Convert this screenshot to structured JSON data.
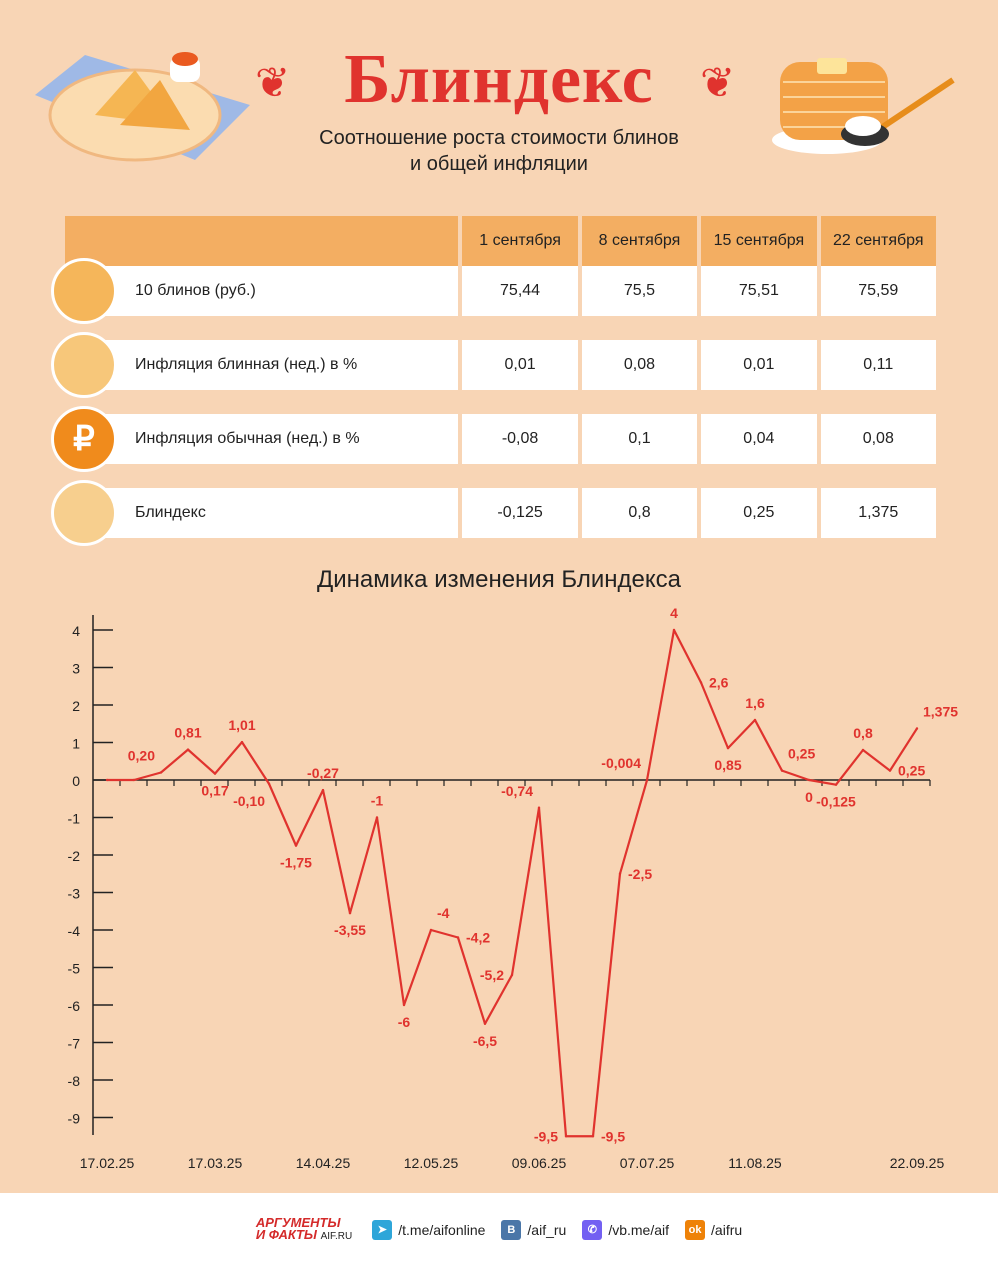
{
  "header": {
    "title": "Блиндекс",
    "subtitle_line1": "Соотношение роста стоимости блинов",
    "subtitle_line2": "и общей инфляции"
  },
  "table": {
    "columns": [
      "1 сентября",
      "8 сентября",
      "15 сентября",
      "22 сентября"
    ],
    "rows": [
      {
        "label": "10 блинов (руб.)",
        "icon": "pancake-stack-icon",
        "values": [
          "75,44",
          "75,5",
          "75,51",
          "75,59"
        ]
      },
      {
        "label": "Инфляция блинная (нед.) в %",
        "icon": "pancake-icon",
        "values": [
          "0,01",
          "0,08",
          "0,01",
          "0,11"
        ]
      },
      {
        "label": "Инфляция обычная (нед.) в %",
        "icon": "ruble-coin-icon",
        "values": [
          "-0,08",
          "0,1",
          "0,04",
          "0,08"
        ]
      },
      {
        "label": "Блиндекс",
        "icon": "pancake-growth-icon",
        "values": [
          "-0,125",
          "0,8",
          "0,25",
          "1,375"
        ]
      }
    ]
  },
  "chart_data": {
    "type": "line",
    "title": "Динамика изменения Блиндекса",
    "color": "#e0332e",
    "ylim": [
      -9.5,
      4.2
    ],
    "yticks": [
      "4",
      "3",
      "2",
      "1",
      "0",
      "-1",
      "-2",
      "-3",
      "-4",
      "-5",
      "-6",
      "-7",
      "-8",
      "-9"
    ],
    "ytick_values": [
      4,
      3,
      2,
      1,
      0,
      -1,
      -2,
      -3,
      -4,
      -5,
      -6,
      -7,
      -8,
      -9
    ],
    "xlabels": [
      {
        "i": 0,
        "text": "17.02.25"
      },
      {
        "i": 4,
        "text": "17.03.25"
      },
      {
        "i": 8,
        "text": "14.04.25"
      },
      {
        "i": 12,
        "text": "12.05.25"
      },
      {
        "i": 16,
        "text": "09.06.25"
      },
      {
        "i": 20,
        "text": "07.07.25"
      },
      {
        "i": 24,
        "text": "11.08.25"
      },
      {
        "i": 30,
        "text": "22.09.25"
      }
    ],
    "values": [
      0,
      0,
      0.2,
      0.81,
      0.17,
      1.01,
      -0.1,
      -1.75,
      -0.27,
      -3.55,
      -1,
      -6,
      -4,
      -4.2,
      -6.5,
      -5.2,
      -0.74,
      -9.5,
      -9.5,
      -2.5,
      -0.004,
      4,
      2.6,
      0.85,
      1.6,
      0.25,
      0,
      -0.125,
      0.8,
      0.25,
      1.375
    ],
    "labels": [
      "",
      "",
      "0,20",
      "0,81",
      "0,17",
      "1,01",
      "-0,10",
      "-1,75",
      "-0,27",
      "-3,55",
      "-1",
      "-6",
      "-4",
      "-4,2",
      "-6,5",
      "-5,2",
      "-0,74",
      "-9,5",
      "-9,5",
      "-2,5",
      "-0,004",
      "4",
      "2,6",
      "0,85",
      "1,6",
      "0,25",
      "0",
      "-0,125",
      "0,8",
      "0,25",
      "1,375"
    ],
    "label_pos": [
      "",
      "",
      "above-left",
      "above",
      "below",
      "above",
      "below-left",
      "below",
      "above",
      "below",
      "above",
      "below",
      "above-right",
      "right",
      "below",
      "left",
      "above-left",
      "left",
      "right",
      "right",
      "above-left",
      "above",
      "right",
      "below",
      "above",
      "above-right",
      "below",
      "below",
      "above",
      "right",
      "above-right"
    ]
  },
  "footer": {
    "brand_line1": "АРГУМЕНТЫ",
    "brand_line2": "И ФАКТЫ",
    "brand_site": "AIF.RU",
    "links": [
      {
        "icon": "telegram-icon",
        "text": "/t.me/aifonline",
        "color": "#2ea6d9"
      },
      {
        "icon": "vk-icon",
        "text": "/aif_ru",
        "color": "#4a76a8"
      },
      {
        "icon": "viber-icon",
        "text": "/vb.me/aif",
        "color": "#7360f2"
      },
      {
        "icon": "odnoklassniki-icon",
        "text": "/aifru",
        "color": "#ee8208"
      }
    ]
  }
}
